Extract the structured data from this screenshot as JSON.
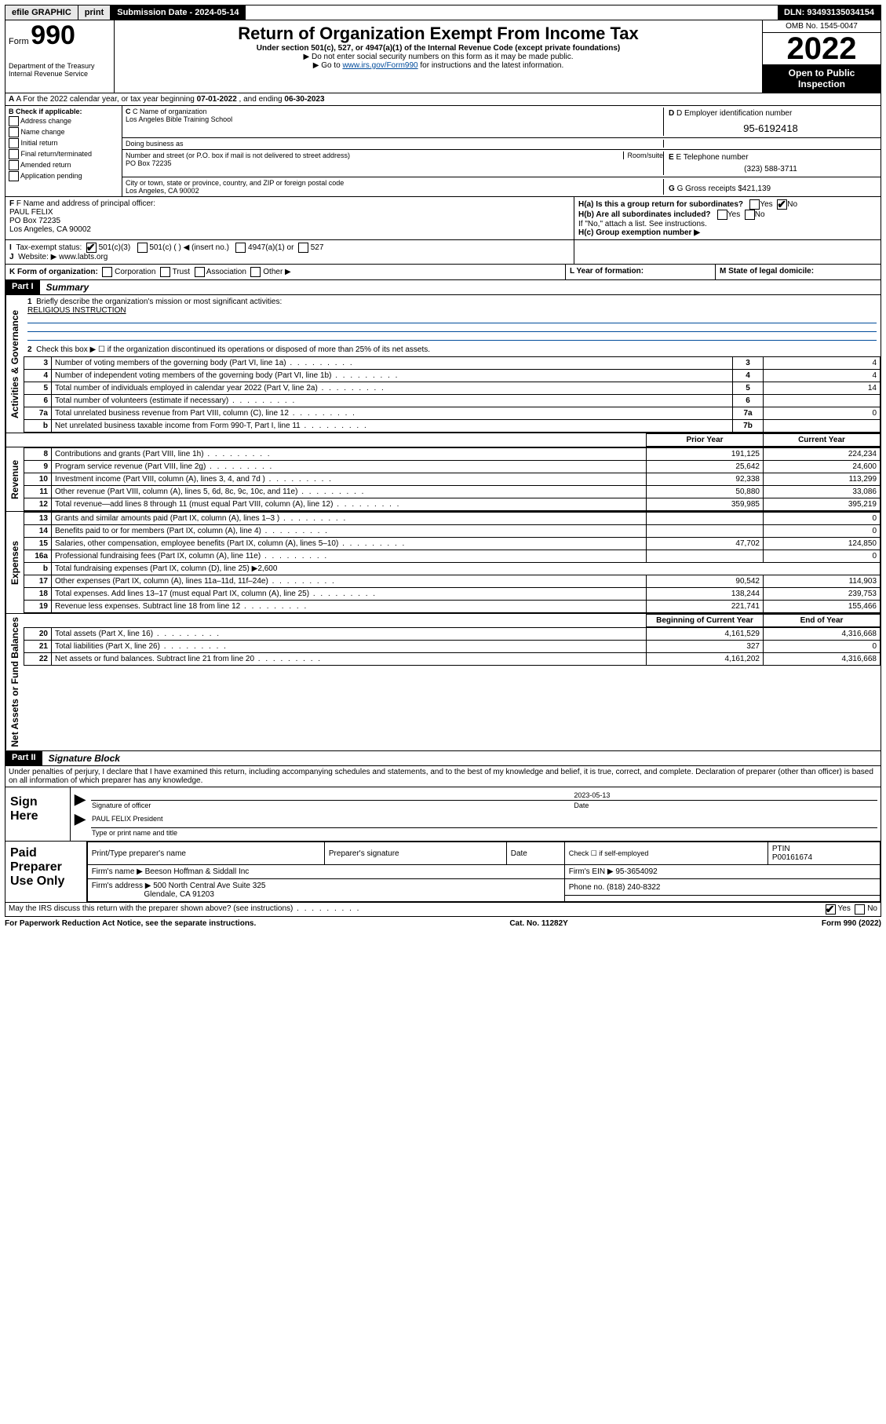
{
  "topbar": {
    "efile": "efile GRAPHIC",
    "print": "print",
    "subdate_label": "Submission Date - ",
    "subdate": "2024-05-14",
    "dln_label": "DLN: ",
    "dln": "93493135034154"
  },
  "header": {
    "form_label": "Form",
    "form_num": "990",
    "dept": "Department of the Treasury",
    "irs": "Internal Revenue Service",
    "title": "Return of Organization Exempt From Income Tax",
    "sub": "Under section 501(c), 527, or 4947(a)(1) of the Internal Revenue Code (except private foundations)",
    "note1": "▶ Do not enter social security numbers on this form as it may be made public.",
    "note2_pre": "▶ Go to ",
    "note2_link": "www.irs.gov/Form990",
    "note2_post": " for instructions and the latest information.",
    "omb": "OMB No. 1545-0047",
    "year": "2022",
    "open": "Open to Public Inspection"
  },
  "lineA": {
    "text_pre": "A For the 2022 calendar year, or tax year beginning ",
    "begin": "07-01-2022",
    "mid": " , and ending ",
    "end": "06-30-2023"
  },
  "boxB": {
    "label": "B Check if applicable:",
    "items": [
      "Address change",
      "Name change",
      "Initial return",
      "Final return/terminated",
      "Amended return",
      "Application pending"
    ]
  },
  "boxC": {
    "label": "C Name of organization",
    "name": "Los Angeles Bible Training School",
    "dba_label": "Doing business as",
    "addr_label": "Number and street (or P.O. box if mail is not delivered to street address)",
    "room_label": "Room/suite",
    "addr": "PO Box 72235",
    "city_label": "City or town, state or province, country, and ZIP or foreign postal code",
    "city": "Los Angeles, CA  90002"
  },
  "boxD": {
    "label": "D Employer identification number",
    "ein": "95-6192418"
  },
  "boxE": {
    "label": "E Telephone number",
    "phone": "(323) 588-3711"
  },
  "boxG": {
    "label": "G Gross receipts $ ",
    "val": "421,139"
  },
  "boxF": {
    "label": "F Name and address of principal officer:",
    "name": "PAUL FELIX",
    "addr1": "PO Box 72235",
    "addr2": "Los Angeles, CA  90002"
  },
  "boxH": {
    "a": "H(a)  Is this a group return for subordinates?",
    "b": "H(b)  Are all subordinates included?",
    "b_note": "If \"No,\" attach a list. See instructions.",
    "c": "H(c)  Group exemption number ▶",
    "yes": "Yes",
    "no": "No"
  },
  "boxI": {
    "label": "Tax-exempt status:",
    "opts": [
      "501(c)(3)",
      "501(c) (  ) ◀ (insert no.)",
      "4947(a)(1) or",
      "527"
    ]
  },
  "boxJ": {
    "label": "Website: ▶ ",
    "val": "www.labts.org"
  },
  "boxK": {
    "label": "K Form of organization:",
    "opts": [
      "Corporation",
      "Trust",
      "Association",
      "Other ▶"
    ]
  },
  "boxL": {
    "label": "L Year of formation:"
  },
  "boxM": {
    "label": "M State of legal domicile:"
  },
  "part1": {
    "hdr": "Part I",
    "title": "Summary",
    "q1": "Briefly describe the organization's mission or most significant activities:",
    "q1_val": "RELIGIOUS INSTRUCTION",
    "q2": "Check this box ▶ ☐  if the organization discontinued its operations or disposed of more than 25% of its net assets.",
    "rows_a": [
      {
        "n": "3",
        "d": "Number of voting members of the governing body (Part VI, line 1a)",
        "b": "3",
        "v": "4"
      },
      {
        "n": "4",
        "d": "Number of independent voting members of the governing body (Part VI, line 1b)",
        "b": "4",
        "v": "4"
      },
      {
        "n": "5",
        "d": "Total number of individuals employed in calendar year 2022 (Part V, line 2a)",
        "b": "5",
        "v": "14"
      },
      {
        "n": "6",
        "d": "Total number of volunteers (estimate if necessary)",
        "b": "6",
        "v": ""
      },
      {
        "n": "7a",
        "d": "Total unrelated business revenue from Part VIII, column (C), line 12",
        "b": "7a",
        "v": "0"
      },
      {
        "n": "b",
        "d": "Net unrelated business taxable income from Form 990-T, Part I, line 11",
        "b": "7b",
        "v": ""
      }
    ],
    "col_prior": "Prior Year",
    "col_curr": "Current Year",
    "rows_rev": [
      {
        "n": "8",
        "d": "Contributions and grants (Part VIII, line 1h)",
        "p": "191,125",
        "c": "224,234"
      },
      {
        "n": "9",
        "d": "Program service revenue (Part VIII, line 2g)",
        "p": "25,642",
        "c": "24,600"
      },
      {
        "n": "10",
        "d": "Investment income (Part VIII, column (A), lines 3, 4, and 7d )",
        "p": "92,338",
        "c": "113,299"
      },
      {
        "n": "11",
        "d": "Other revenue (Part VIII, column (A), lines 5, 6d, 8c, 9c, 10c, and 11e)",
        "p": "50,880",
        "c": "33,086"
      },
      {
        "n": "12",
        "d": "Total revenue—add lines 8 through 11 (must equal Part VIII, column (A), line 12)",
        "p": "359,985",
        "c": "395,219"
      }
    ],
    "rows_exp": [
      {
        "n": "13",
        "d": "Grants and similar amounts paid (Part IX, column (A), lines 1–3 )",
        "p": "",
        "c": "0"
      },
      {
        "n": "14",
        "d": "Benefits paid to or for members (Part IX, column (A), line 4)",
        "p": "",
        "c": "0"
      },
      {
        "n": "15",
        "d": "Salaries, other compensation, employee benefits (Part IX, column (A), lines 5–10)",
        "p": "47,702",
        "c": "124,850"
      },
      {
        "n": "16a",
        "d": "Professional fundraising fees (Part IX, column (A), line 11e)",
        "p": "",
        "c": "0"
      },
      {
        "n": "b",
        "d": "Total fundraising expenses (Part IX, column (D), line 25) ▶2,600",
        "p": "—",
        "c": "—"
      },
      {
        "n": "17",
        "d": "Other expenses (Part IX, column (A), lines 11a–11d, 11f–24e)",
        "p": "90,542",
        "c": "114,903"
      },
      {
        "n": "18",
        "d": "Total expenses. Add lines 13–17 (must equal Part IX, column (A), line 25)",
        "p": "138,244",
        "c": "239,753"
      },
      {
        "n": "19",
        "d": "Revenue less expenses. Subtract line 18 from line 12",
        "p": "221,741",
        "c": "155,466"
      }
    ],
    "col_boy": "Beginning of Current Year",
    "col_eoy": "End of Year",
    "rows_na": [
      {
        "n": "20",
        "d": "Total assets (Part X, line 16)",
        "p": "4,161,529",
        "c": "4,316,668"
      },
      {
        "n": "21",
        "d": "Total liabilities (Part X, line 26)",
        "p": "327",
        "c": "0"
      },
      {
        "n": "22",
        "d": "Net assets or fund balances. Subtract line 21 from line 20",
        "p": "4,161,202",
        "c": "4,316,668"
      }
    ]
  },
  "vlabels": {
    "ag": "Activities & Governance",
    "rev": "Revenue",
    "exp": "Expenses",
    "na": "Net Assets or Fund Balances"
  },
  "part2": {
    "hdr": "Part II",
    "title": "Signature Block",
    "decl": "Under penalties of perjury, I declare that I have examined this return, including accompanying schedules and statements, and to the best of my knowledge and belief, it is true, correct, and complete. Declaration of preparer (other than officer) is based on all information of which preparer has any knowledge.",
    "sign_here": "Sign Here",
    "sig_officer": "Signature of officer",
    "date": "Date",
    "date_val": "2023-05-13",
    "name_title": "PAUL FELIX  President",
    "type_label": "Type or print name and title"
  },
  "paid": {
    "label": "Paid Preparer Use Only",
    "h1": "Print/Type preparer's name",
    "h2": "Preparer's signature",
    "h3": "Date",
    "h4_pre": "Check ☐ if self-employed",
    "h5": "PTIN",
    "ptin": "P00161674",
    "firm_label": "Firm's name    ▶ ",
    "firm": "Beeson Hoffman & Siddall Inc",
    "ein_label": "Firm's EIN ▶ ",
    "ein": "95-3654092",
    "addr_label": "Firm's address ▶ ",
    "addr1": "500 North Central Ave Suite 325",
    "addr2": "Glendale, CA  91203",
    "phone_label": "Phone no. ",
    "phone": "(818) 240-8322"
  },
  "discuss": {
    "q": "May the IRS discuss this return with the preparer shown above? (see instructions)",
    "yes": "Yes",
    "no": "No"
  },
  "footer": {
    "l": "For Paperwork Reduction Act Notice, see the separate instructions.",
    "m": "Cat. No. 11282Y",
    "r": "Form 990 (2022)"
  },
  "colors": {
    "link": "#004b9b",
    "black": "#000000",
    "grey": "#e8e8e8"
  }
}
